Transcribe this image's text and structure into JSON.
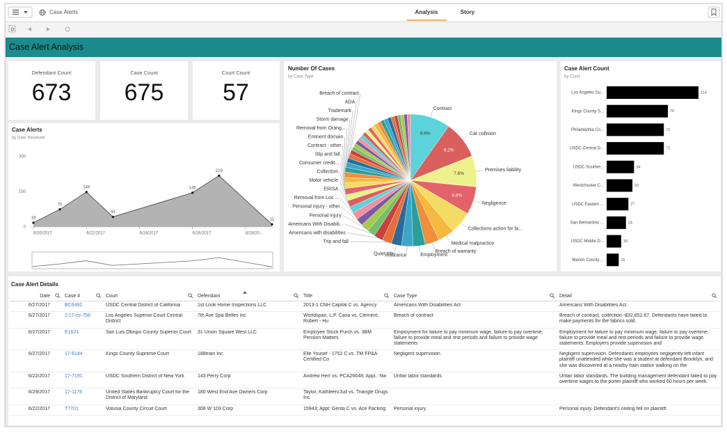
{
  "header": {
    "app_title": "Case Alerts",
    "tabs": [
      "Analysis",
      "Story"
    ]
  },
  "banner": {
    "title": "Case Alert Analysis"
  },
  "kpis": [
    {
      "label": "Defendant Count",
      "value": 673
    },
    {
      "label": "Case Count",
      "value": 675
    },
    {
      "label": "Court Count",
      "value": 57
    }
  ],
  "chart_data": [
    {
      "type": "line",
      "title": "Case Alerts",
      "subtitle": "by Date Received",
      "x": [
        "2017-06-20",
        "2017-06-21",
        "2017-06-22",
        "2017-06-23",
        "2017-06-26",
        "2017-06-27",
        "2017-06-29"
      ],
      "values": [
        18,
        75,
        149,
        43,
        146,
        219,
        11
      ],
      "color": "#b3b3b3",
      "line_color": "#5a5a5a",
      "xlim": [
        "2017-06-20",
        "2017-06-29"
      ],
      "xticks": [
        {
          "value": "2017-06-20",
          "label": "6/20/2017"
        },
        {
          "value": "2017-06-22",
          "label": "6/22/2017"
        },
        {
          "value": "2017-06-24",
          "label": "6/24/2017"
        },
        {
          "value": "2017-06-26",
          "label": "6/26/2017"
        },
        {
          "value": "2017-06-28",
          "label": "6/28/20..."
        }
      ],
      "ylim": [
        0,
        300
      ],
      "yticks": [
        0,
        150,
        300
      ]
    },
    {
      "type": "pie",
      "title": "Number Of Cases",
      "subtitle": "by Case Type",
      "categories": [
        "Contract",
        "Car collision",
        "Premises liability",
        "Negligence",
        "Collections action for fa...",
        "Medical malpractice",
        "Breach of warranty",
        "Employment",
        "Insurance",
        "Quiet title",
        "Trip and fall",
        "Americans with disabilities",
        "Americans With Disabili...",
        "Personal injury",
        "Personal injury - other",
        "Removal from Los ...",
        "ERISA",
        "Motor vehicle",
        "Collection",
        "Consumer credit...",
        "Slip and fall",
        "Contract - other",
        "Eminent domain",
        "Removal from Orang...",
        "Storm damage",
        "Trademark",
        "ADA",
        "Breach of contract",
        null,
        null,
        null,
        null,
        null,
        null,
        null,
        null,
        null,
        null,
        null,
        null,
        null,
        null,
        null,
        null,
        null,
        null,
        null,
        null
      ],
      "values": [
        9.8,
        9.2,
        7.6,
        6.8,
        5.5,
        4,
        3.5,
        3,
        2.8,
        2.5,
        2.3,
        2.2,
        2,
        2,
        1.8,
        1.8,
        1.6,
        1.6,
        1.5,
        1.5,
        1.4,
        1.3,
        1.3,
        1.2,
        1.2,
        1.1,
        1.1,
        1,
        0.9,
        0.9,
        0.9,
        0.9,
        0.9,
        0.9,
        0.9,
        0.9,
        0.9,
        0.9,
        0.9,
        0.9,
        0.9,
        0.9,
        0.8,
        0.8,
        0.8,
        0.8,
        0.8,
        0.8
      ],
      "value_labels": [
        "9.8%",
        "9.2%",
        "7.6%",
        "6.8%",
        null,
        null,
        null,
        null,
        null,
        null,
        null,
        null,
        null,
        null,
        null,
        null,
        null,
        null,
        null,
        null,
        null,
        null,
        null,
        null,
        null,
        null,
        null,
        null,
        null,
        null,
        null,
        null,
        null,
        null,
        null,
        null,
        null,
        null,
        null,
        null,
        null,
        null,
        null,
        null,
        null,
        null,
        null,
        null
      ],
      "palette": [
        "#5cd2da",
        "#d9605f",
        "#eef28c",
        "#e4636a",
        "#f4dc64",
        "#f6b940",
        "#ef8f3a",
        "#2b9d9b",
        "#3aa6c8",
        "#2a6b9c",
        "#e86e3a",
        "#c8413f",
        "#74bf6b",
        "#a8c84e",
        "#7d5aa6",
        "#f08fa0"
      ]
    },
    {
      "type": "bar",
      "orientation": "horizontal",
      "title": "Case Alert Count",
      "subtitle": "by Court",
      "categories": [
        "Los Angeles Su...",
        "Kings County S...",
        "Philadelphia Co...",
        "USDC Central D...",
        "USDC Souther...",
        "Westchester C...",
        "USDC Eastern ...",
        "San Bernardino ...",
        "USDC Middle D...",
        "Marion County ..."
      ],
      "values": [
        114,
        76,
        71,
        71,
        34,
        32,
        27,
        24,
        18,
        15
      ],
      "color": "#000000"
    }
  ],
  "table": {
    "title": "Case Alert Details",
    "columns": [
      "Date",
      "Case #",
      "Court",
      "Defendant",
      "Title",
      "Case Type",
      "Detail"
    ],
    "rows": [
      [
        "6/27/2017",
        "BC6492",
        "USDC Central District of California",
        "1st Look Home Inspections LLC",
        "2013-1 CNH Capital C vs. Agency",
        "Americans With Disabilities Act",
        "Americans With Disabilities Act."
      ],
      [
        "6/27/2017",
        "2:17-cv-756",
        "Los Angeles Superior Court Central District",
        "7th Ave Spa Belles Inc",
        "Worldspan, L.P. Cana vs. Clement, Robert - Hu",
        "Breach of contract",
        "Breach of contract, collection -$32,852.67. Defendants have failed to make payments for the fabrics sold."
      ],
      [
        "6/27/2017",
        "E1621",
        "San Luis Obispo County Superior Court",
        "31 Union Square West LLC",
        "Employee Stock Purch vs. 3BM Pension Matters",
        "Employment for failure to pay minimum wage, failure to pay overtime, failure to provide meal and rest periods and failure to provide wage statements",
        "Employment for failure to pay minimum wage, failure to pay overtime, failure to provide meal and rest periods and failure to provide wage statements. Employers provide supervision and"
      ],
      [
        "6/27/2017",
        "17-6144",
        "Kings County Supreme Court",
        "188train Inc",
        "Elle Yousef - 1752 C vs. TM FP&A Certified Co",
        "Negligent supervision",
        "Negligent supervision. Defendants employees negligently left infant plaintiff unattended while she was a student at defendant Brooklyn, and she was discovered at a nearby train station walking on the"
      ],
      [
        "6/22/2017",
        "17-7191",
        "USDC Southern District of New York",
        "143 Perry Corp",
        "Andrew Herr vs. PCA26648; Appl.: Nw",
        "Unfair labor standards",
        "Unfair labor standards. The building management defendant failed to pay overtime wages to the porter plaintiff who worked 60 hours per week."
      ],
      [
        "6/29/2017",
        "17-1176",
        "United States Bankruptcy Court for the District of Maryland",
        "180 West End Ave Owners Corp",
        "Taylor, Kathleen/Jud vs. Triangle Drugs Inc.",
        null,
        null
      ],
      [
        "6/22/2017",
        "T7701",
        "Volusia County Circuit Court",
        "308 W 103 Corp",
        "15943; Appl: Genta C vs. Ace Packing",
        "Personal injury",
        "Personal injury. Defendant's ceiling fell on plaintiff."
      ]
    ]
  }
}
